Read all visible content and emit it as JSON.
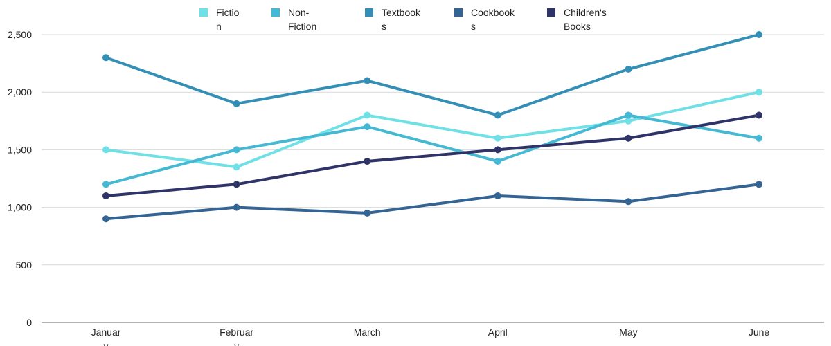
{
  "chart_data": {
    "type": "line",
    "title": "",
    "xlabel": "",
    "ylabel": "",
    "categories": [
      "January",
      "February",
      "March",
      "April",
      "May",
      "June"
    ],
    "ylim": [
      0,
      2500
    ],
    "yticks": [
      0,
      500,
      1000,
      1500,
      2000,
      2500
    ],
    "ytick_labels": [
      "0",
      "500",
      "1,000",
      "1,500",
      "2,000",
      "2,500"
    ],
    "grid": true,
    "legend_position": "top-center",
    "series": [
      {
        "name": "Fiction",
        "color": "#6ee0e6",
        "values": [
          1500,
          1350,
          1800,
          1600,
          1750,
          2000
        ]
      },
      {
        "name": "Non-Fiction",
        "color": "#45b8d3",
        "values": [
          1200,
          1500,
          1700,
          1400,
          1800,
          1600
        ]
      },
      {
        "name": "Textbooks",
        "color": "#338fb6",
        "values": [
          2300,
          1900,
          2100,
          1800,
          2200,
          2500
        ]
      },
      {
        "name": "Cookbooks",
        "color": "#336494",
        "values": [
          900,
          1000,
          950,
          1100,
          1050,
          1200
        ]
      },
      {
        "name": "Children's Books",
        "color": "#2e3467",
        "values": [
          1100,
          1200,
          1400,
          1500,
          1600,
          1800
        ]
      }
    ]
  }
}
